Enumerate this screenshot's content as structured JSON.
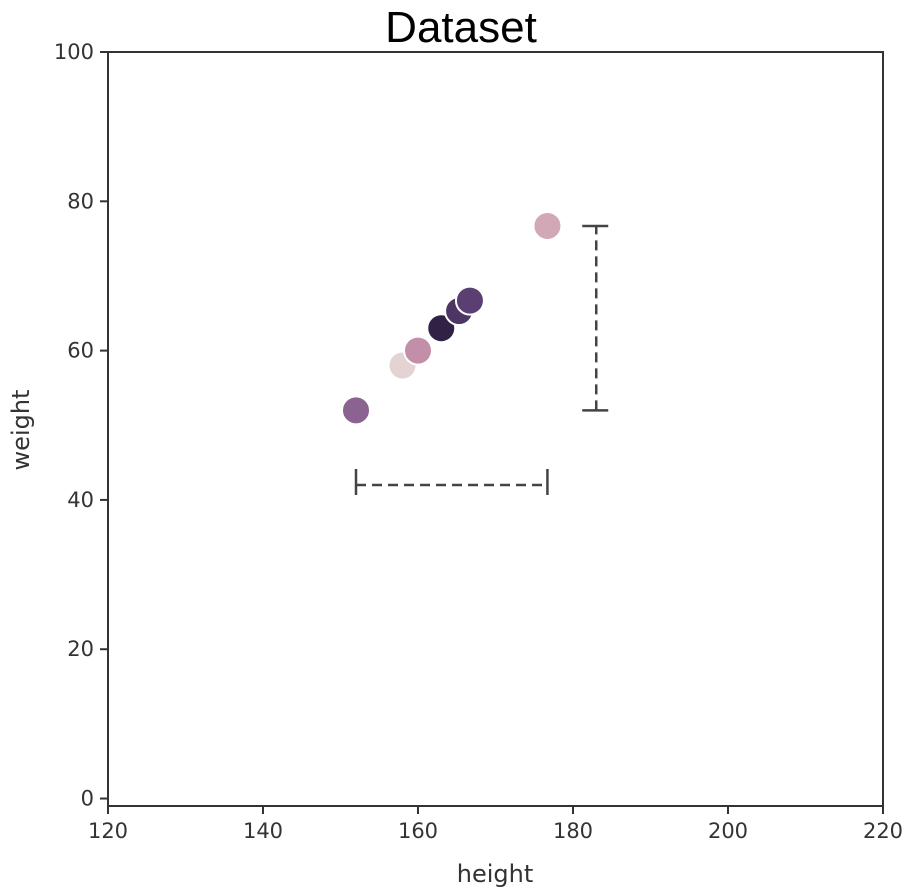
{
  "chart_data": {
    "type": "scatter",
    "title": "Dataset",
    "xlabel": "height",
    "ylabel": "weight",
    "xlim": [
      120,
      220
    ],
    "ylim": [
      -1,
      100
    ],
    "xticks": [
      120,
      140,
      160,
      180,
      200,
      220
    ],
    "yticks": [
      0,
      20,
      40,
      60,
      80,
      100
    ],
    "grid": false,
    "points": [
      {
        "x": 152,
        "y": 52,
        "color": "#8a6390"
      },
      {
        "x": 158,
        "y": 58,
        "color": "#e4d3d3"
      },
      {
        "x": 160,
        "y": 60,
        "color": "#c28ea8"
      },
      {
        "x": 163,
        "y": 63,
        "color": "#2f2245"
      },
      {
        "x": 165.3,
        "y": 65.3,
        "color": "#4d3564"
      },
      {
        "x": 166.7,
        "y": 66.7,
        "color": "#5c3f72"
      },
      {
        "x": 176.7,
        "y": 76.7,
        "color": "#d2a8b6"
      }
    ],
    "annotations": [
      {
        "type": "x-range",
        "from": 152,
        "to": 176.7,
        "at_y": 42
      },
      {
        "type": "y-range",
        "from": 52,
        "to": 76.7,
        "at_x": 183
      }
    ]
  }
}
